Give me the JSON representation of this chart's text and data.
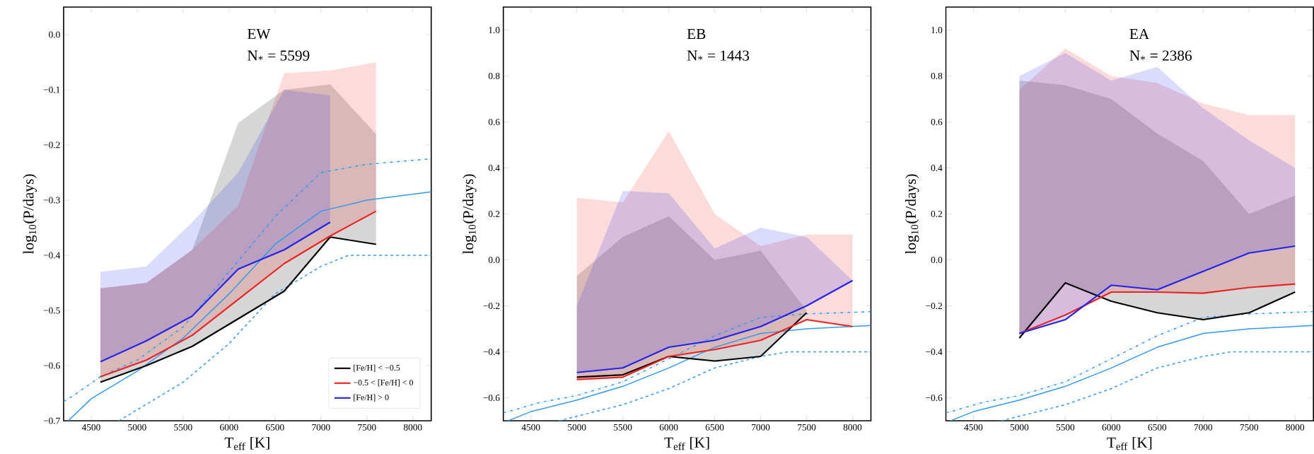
{
  "chart_data": [
    {
      "type": "line",
      "xlabel": "T$_{eff}$ [K]",
      "ylabel": "log$_{10}$(P/days)",
      "xlim": [
        4200,
        8200
      ],
      "ylim": [
        -0.7,
        0.05
      ],
      "xticks": [
        4500,
        5000,
        5500,
        6000,
        6500,
        7000,
        7500,
        8000
      ],
      "yticks": [
        {
          "value": -0.7,
          "label": "−0.7"
        },
        {
          "value": -0.6,
          "label": "−0.6"
        },
        {
          "value": -0.5,
          "label": "−0.5"
        },
        {
          "value": -0.4,
          "label": "−0.4"
        },
        {
          "value": -0.3,
          "label": "−0.3"
        },
        {
          "value": -0.2,
          "label": "−0.2"
        },
        {
          "value": -0.1,
          "label": "−0.1"
        },
        {
          "value": 0.0,
          "label": "0.0"
        }
      ],
      "annotations": [
        "EW",
        "N$_{*}$ = 5599"
      ],
      "legend": "bottom right",
      "series": [
        {
          "name": "[Fe/H] < −0.5",
          "color": "#000000",
          "x": [
            4600,
            5100,
            5600,
            6100,
            6600,
            7100,
            7600
          ],
          "values": [
            -0.63,
            -0.6,
            -0.565,
            -0.515,
            -0.465,
            -0.367,
            -0.38
          ],
          "lower": [
            -0.63,
            -0.6,
            -0.565,
            -0.515,
            -0.465,
            -0.367,
            -0.38
          ],
          "upper": [
            -0.46,
            -0.45,
            -0.39,
            -0.16,
            -0.1,
            -0.09,
            -0.18
          ]
        },
        {
          "name": "−0.5 < [Fe/H] < 0",
          "color": "#ee2222",
          "x": [
            4600,
            5100,
            5600,
            6100,
            6600,
            7100,
            7600
          ],
          "values": [
            -0.62,
            -0.59,
            -0.545,
            -0.48,
            -0.415,
            -0.365,
            -0.32
          ],
          "lower": [
            -0.62,
            -0.59,
            -0.545,
            -0.48,
            -0.415,
            -0.365,
            -0.32
          ],
          "upper": [
            -0.46,
            -0.45,
            -0.39,
            -0.31,
            -0.07,
            -0.065,
            -0.05
          ]
        },
        {
          "name": "[Fe/H] > 0",
          "color": "#2222ee",
          "x": [
            4600,
            5100,
            5600,
            6100,
            6600,
            7100
          ],
          "values": [
            -0.593,
            -0.555,
            -0.51,
            -0.425,
            -0.39,
            -0.34
          ],
          "lower": [
            -0.593,
            -0.555,
            -0.51,
            -0.425,
            -0.39,
            -0.34
          ],
          "upper": [
            -0.43,
            -0.42,
            -0.34,
            -0.25,
            -0.1,
            -0.11
          ]
        },
        {
          "color": "#3399ee",
          "line_style": "dashdot",
          "x": [
            4200,
            4300,
            4600,
            5000,
            5500,
            6000,
            6500,
            7000,
            7500,
            8200
          ],
          "values": [
            -0.665,
            -0.655,
            -0.62,
            -0.59,
            -0.53,
            -0.43,
            -0.33,
            -0.25,
            -0.235,
            -0.225
          ]
        },
        {
          "color": "#3399ee",
          "line_style": "solid",
          "x": [
            4250,
            4500,
            5000,
            5500,
            6000,
            6500,
            7000,
            7500,
            8200
          ],
          "values": [
            -0.7,
            -0.66,
            -0.61,
            -0.55,
            -0.47,
            -0.38,
            -0.32,
            -0.3,
            -0.285
          ]
        },
        {
          "color": "#3399ee",
          "line_style": "dashed",
          "x": [
            4800,
            5000,
            5500,
            6000,
            6500,
            7000,
            7300,
            8200
          ],
          "values": [
            -0.7,
            -0.68,
            -0.63,
            -0.56,
            -0.47,
            -0.42,
            -0.4,
            -0.4
          ]
        }
      ]
    },
    {
      "type": "line",
      "xlabel": "T$_{eff}$ [K]",
      "ylabel": "log$_{10}$(P/days)",
      "xlim": [
        4200,
        8200
      ],
      "ylim": [
        -0.7,
        1.1
      ],
      "xticks": [
        4500,
        5000,
        5500,
        6000,
        6500,
        7000,
        7500,
        8000
      ],
      "yticks": [
        {
          "value": -0.6,
          "label": "−0.6"
        },
        {
          "value": -0.4,
          "label": "−0.4"
        },
        {
          "value": -0.2,
          "label": "−0.2"
        },
        {
          "value": 0.0,
          "label": "0.0"
        },
        {
          "value": 0.2,
          "label": "0.2"
        },
        {
          "value": 0.4,
          "label": "0.4"
        },
        {
          "value": 0.6,
          "label": "0.6"
        },
        {
          "value": 0.8,
          "label": "0.8"
        },
        {
          "value": 1.0,
          "label": "1.0"
        }
      ],
      "annotations": [
        "EB",
        "N$_{*}$ = 1443"
      ],
      "series": [
        {
          "color": "#000000",
          "x": [
            5000,
            5500,
            6000,
            6500,
            7000,
            7500
          ],
          "values": [
            -0.51,
            -0.5,
            -0.42,
            -0.44,
            -0.42,
            -0.23
          ],
          "lower": [
            -0.51,
            -0.5,
            -0.42,
            -0.44,
            -0.42,
            -0.23
          ],
          "upper": [
            -0.07,
            0.1,
            0.19,
            0.0,
            0.04,
            -0.22
          ]
        },
        {
          "color": "#ee2222",
          "x": [
            5000,
            5500,
            6000,
            6500,
            7000,
            7500,
            8000
          ],
          "values": [
            -0.52,
            -0.51,
            -0.42,
            -0.39,
            -0.35,
            -0.26,
            -0.29
          ],
          "lower": [
            -0.52,
            -0.51,
            -0.42,
            -0.39,
            -0.35,
            -0.26,
            -0.29
          ],
          "upper": [
            0.27,
            0.25,
            0.56,
            0.2,
            0.06,
            0.11,
            0.11
          ]
        },
        {
          "color": "#2222ee",
          "x": [
            5000,
            5500,
            6000,
            6500,
            7000,
            7500,
            8000
          ],
          "values": [
            -0.49,
            -0.47,
            -0.38,
            -0.35,
            -0.29,
            -0.2,
            -0.09
          ],
          "lower": [
            -0.49,
            -0.47,
            -0.38,
            -0.35,
            -0.29,
            -0.2,
            -0.09
          ],
          "upper": [
            -0.2,
            0.3,
            0.29,
            0.05,
            0.14,
            0.1,
            -0.09
          ]
        },
        {
          "color": "#3399ee",
          "line_style": "dashdot",
          "x": [
            4200,
            4300,
            4600,
            5000,
            5500,
            6000,
            6500,
            7000,
            7500,
            8200
          ],
          "values": [
            -0.665,
            -0.655,
            -0.62,
            -0.59,
            -0.53,
            -0.43,
            -0.33,
            -0.25,
            -0.235,
            -0.225
          ]
        },
        {
          "color": "#3399ee",
          "line_style": "solid",
          "x": [
            4250,
            4500,
            5000,
            5500,
            6000,
            6500,
            7000,
            7500,
            8200
          ],
          "values": [
            -0.7,
            -0.66,
            -0.61,
            -0.55,
            -0.47,
            -0.38,
            -0.32,
            -0.3,
            -0.285
          ]
        },
        {
          "color": "#3399ee",
          "line_style": "dashed",
          "x": [
            4800,
            5000,
            5500,
            6000,
            6500,
            7000,
            7300,
            8200
          ],
          "values": [
            -0.7,
            -0.68,
            -0.63,
            -0.56,
            -0.47,
            -0.42,
            -0.4,
            -0.4
          ]
        }
      ]
    },
    {
      "type": "line",
      "xlabel": "T$_{eff}$ [K]",
      "ylabel": "log$_{10}$(P/days)",
      "xlim": [
        4200,
        8200
      ],
      "ylim": [
        -0.7,
        1.1
      ],
      "xticks": [
        4500,
        5000,
        5500,
        6000,
        6500,
        7000,
        7500,
        8000
      ],
      "yticks": [
        {
          "value": -0.6,
          "label": "−0.6"
        },
        {
          "value": -0.4,
          "label": "−0.4"
        },
        {
          "value": -0.2,
          "label": "−0.2"
        },
        {
          "value": 0.0,
          "label": "0.0"
        },
        {
          "value": 0.2,
          "label": "0.2"
        },
        {
          "value": 0.4,
          "label": "0.4"
        },
        {
          "value": 0.6,
          "label": "0.6"
        },
        {
          "value": 0.8,
          "label": "0.8"
        },
        {
          "value": 1.0,
          "label": "1.0"
        }
      ],
      "annotations": [
        "EA",
        "N$_{*}$ = 2386"
      ],
      "series": [
        {
          "color": "#000000",
          "x": [
            5000,
            5500,
            6000,
            6500,
            7000,
            7500,
            8000
          ],
          "values": [
            -0.34,
            -0.1,
            -0.18,
            -0.23,
            -0.26,
            -0.23,
            -0.14
          ],
          "lower": [
            -0.34,
            -0.1,
            -0.18,
            -0.23,
            -0.26,
            -0.23,
            -0.14
          ],
          "upper": [
            0.78,
            0.76,
            0.7,
            0.55,
            0.43,
            0.2,
            0.28
          ]
        },
        {
          "color": "#ee2222",
          "x": [
            5000,
            5500,
            6000,
            6500,
            7000,
            7500,
            8000
          ],
          "values": [
            -0.32,
            -0.24,
            -0.14,
            -0.14,
            -0.145,
            -0.12,
            -0.105
          ],
          "lower": [
            -0.32,
            -0.24,
            -0.14,
            -0.14,
            -0.145,
            -0.12,
            -0.105
          ],
          "upper": [
            0.74,
            0.92,
            0.8,
            0.77,
            0.68,
            0.63,
            0.63
          ]
        },
        {
          "color": "#2222ee",
          "x": [
            5000,
            5500,
            6000,
            6500,
            7000,
            7500,
            8000
          ],
          "values": [
            -0.32,
            -0.26,
            -0.11,
            -0.13,
            -0.05,
            0.03,
            0.06
          ],
          "lower": [
            -0.32,
            -0.26,
            -0.11,
            -0.13,
            -0.05,
            0.03,
            0.06
          ],
          "upper": [
            0.8,
            0.9,
            0.78,
            0.84,
            0.66,
            0.52,
            0.4
          ]
        },
        {
          "color": "#3399ee",
          "line_style": "dashdot",
          "x": [
            4200,
            4300,
            4600,
            5000,
            5500,
            6000,
            6500,
            7000,
            7500,
            8200
          ],
          "values": [
            -0.665,
            -0.655,
            -0.62,
            -0.59,
            -0.53,
            -0.43,
            -0.33,
            -0.25,
            -0.235,
            -0.225
          ]
        },
        {
          "color": "#3399ee",
          "line_style": "solid",
          "x": [
            4250,
            4500,
            5000,
            5500,
            6000,
            6500,
            7000,
            7500,
            8200
          ],
          "values": [
            -0.7,
            -0.66,
            -0.61,
            -0.55,
            -0.47,
            -0.38,
            -0.32,
            -0.3,
            -0.285
          ]
        },
        {
          "color": "#3399ee",
          "line_style": "dashed",
          "x": [
            4800,
            5000,
            5500,
            6000,
            6500,
            7000,
            7300,
            8200
          ],
          "values": [
            -0.7,
            -0.68,
            -0.63,
            -0.56,
            -0.47,
            -0.42,
            -0.4,
            -0.4
          ]
        }
      ]
    }
  ]
}
